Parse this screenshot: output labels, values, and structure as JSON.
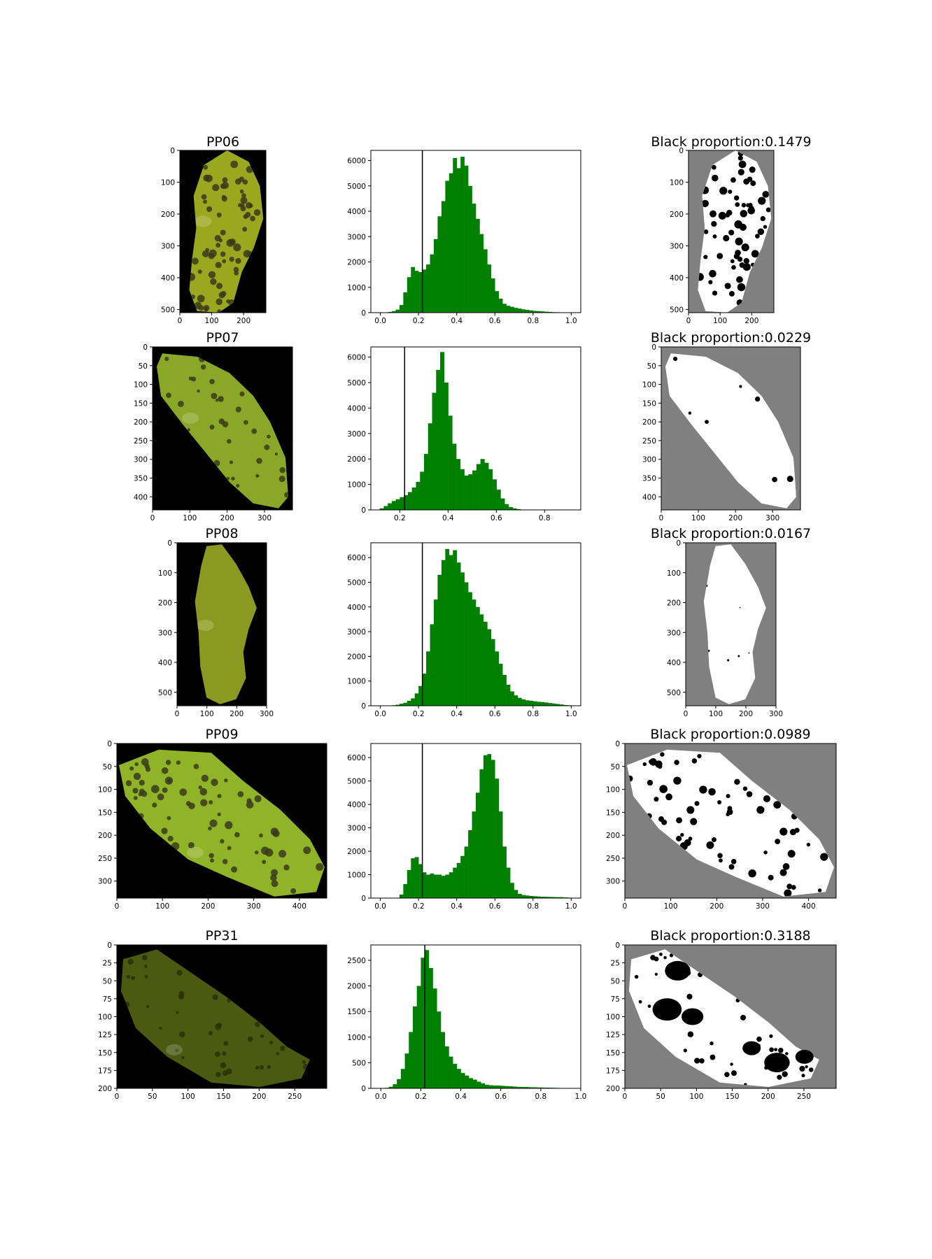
{
  "chart_data": [
    {
      "id": "PP06",
      "image_title": "PP06",
      "image": {
        "type": "image",
        "xlim": [
          0,
          270
        ],
        "ylim": [
          510,
          0
        ],
        "xticks": [
          0,
          100,
          200
        ],
        "yticks": [
          0,
          100,
          200,
          300,
          400,
          500
        ],
        "spots": "dense-large",
        "tint": "#9aa820"
      },
      "histogram": {
        "type": "bar",
        "color": "#008000",
        "xlim": [
          -0.05,
          1.05
        ],
        "ylim": [
          0,
          6400
        ],
        "xticks": [
          0.0,
          0.2,
          0.4,
          0.6,
          0.8,
          1.0
        ],
        "yticks": [
          0,
          1000,
          2000,
          3000,
          4000,
          5000,
          6000
        ],
        "bin_start": 0.0,
        "bin_width": 0.02,
        "values": [
          0,
          10,
          30,
          60,
          120,
          300,
          800,
          1400,
          1800,
          1650,
          1600,
          1700,
          1900,
          2300,
          2900,
          3800,
          4400,
          5200,
          5500,
          6100,
          5700,
          6150,
          5800,
          5000,
          4300,
          3700,
          3100,
          2500,
          1900,
          1350,
          850,
          550,
          350,
          270,
          230,
          190,
          160,
          130,
          110,
          90,
          70,
          60,
          50,
          40,
          30,
          20,
          15,
          10,
          6,
          4,
          2,
          0
        ],
        "threshold": 0.22
      },
      "mask": {
        "type": "image",
        "title": "Black proportion:0.1479",
        "xlim": [
          0,
          270
        ],
        "ylim": [
          510,
          0
        ],
        "xticks": [
          0,
          100,
          200
        ],
        "yticks": [
          0,
          100,
          200,
          300,
          400,
          500
        ]
      }
    },
    {
      "id": "PP07",
      "image_title": "PP07",
      "image": {
        "type": "image",
        "xlim": [
          0,
          375
        ],
        "ylim": [
          435,
          0
        ],
        "xticks": [
          0,
          100,
          200,
          300
        ],
        "yticks": [
          0,
          50,
          100,
          150,
          200,
          250,
          300,
          350,
          400
        ],
        "spots": "sparse-medium",
        "tint": "#8aa828"
      },
      "histogram": {
        "type": "bar",
        "color": "#008000",
        "xlim": [
          0.08,
          0.95
        ],
        "ylim": [
          0,
          6400
        ],
        "xticks": [
          0.2,
          0.4,
          0.6,
          0.8
        ],
        "yticks": [
          0,
          1000,
          2000,
          3000,
          4000,
          5000,
          6000
        ],
        "bin_start": 0.1,
        "bin_width": 0.0167,
        "values": [
          0,
          60,
          150,
          260,
          350,
          420,
          500,
          580,
          700,
          880,
          1100,
          1500,
          2200,
          3400,
          4600,
          5500,
          6200,
          5000,
          3700,
          2600,
          2000,
          1600,
          1350,
          1400,
          1550,
          1800,
          2000,
          1850,
          1600,
          1200,
          800,
          450,
          230,
          110,
          60,
          30,
          10,
          0
        ],
        "threshold": 0.22
      },
      "mask": {
        "type": "image",
        "title": "Black proportion:0.0229",
        "xlim": [
          0,
          375
        ],
        "ylim": [
          435,
          0
        ],
        "xticks": [
          0,
          100,
          200,
          300
        ],
        "yticks": [
          0,
          50,
          100,
          150,
          200,
          250,
          300,
          350,
          400
        ]
      }
    },
    {
      "id": "PP08",
      "image_title": "PP08",
      "image": {
        "type": "image",
        "xlim": [
          0,
          300
        ],
        "ylim": [
          545,
          0
        ],
        "xticks": [
          0,
          100,
          200,
          300
        ],
        "yticks": [
          0,
          100,
          200,
          300,
          400,
          500
        ],
        "spots": "none",
        "tint": "#8a9a20"
      },
      "histogram": {
        "type": "bar",
        "color": "#008000",
        "xlim": [
          -0.05,
          1.05
        ],
        "ylim": [
          0,
          6600
        ],
        "xticks": [
          0.0,
          0.2,
          0.4,
          0.6,
          0.8,
          1.0
        ],
        "yticks": [
          0,
          1000,
          2000,
          3000,
          4000,
          5000,
          6000
        ],
        "bin_start": 0.0,
        "bin_width": 0.02,
        "values": [
          0,
          0,
          10,
          20,
          40,
          80,
          120,
          200,
          300,
          500,
          800,
          1300,
          2200,
          3300,
          4300,
          5300,
          5900,
          6350,
          6100,
          6300,
          5800,
          5400,
          5000,
          4600,
          4300,
          4000,
          3700,
          3400,
          3100,
          2700,
          2200,
          1700,
          1250,
          850,
          580,
          420,
          320,
          260,
          220,
          200,
          180,
          160,
          150,
          130,
          110,
          90,
          70,
          50,
          30,
          20,
          10,
          0
        ],
        "threshold": 0.22
      },
      "mask": {
        "type": "image",
        "title": "Black proportion:0.0167",
        "xlim": [
          0,
          300
        ],
        "ylim": [
          545,
          0
        ],
        "xticks": [
          0,
          100,
          200,
          300
        ],
        "yticks": [
          0,
          100,
          200,
          300,
          400,
          500
        ]
      }
    },
    {
      "id": "PP09",
      "image_title": "PP09",
      "image": {
        "type": "image",
        "xlim": [
          0,
          460
        ],
        "ylim": [
          337,
          0
        ],
        "xticks": [
          0,
          100,
          200,
          300,
          400
        ],
        "yticks": [
          0,
          50,
          100,
          150,
          200,
          250,
          300
        ],
        "spots": "dense-large",
        "tint": "#90b428"
      },
      "histogram": {
        "type": "bar",
        "color": "#008000",
        "xlim": [
          -0.05,
          1.05
        ],
        "ylim": [
          0,
          6600
        ],
        "xticks": [
          0.0,
          0.2,
          0.4,
          0.6,
          0.8,
          1.0
        ],
        "yticks": [
          0,
          1000,
          2000,
          3000,
          4000,
          5000,
          6000
        ],
        "bin_start": 0.0,
        "bin_width": 0.02,
        "values": [
          0,
          0,
          0,
          0,
          0,
          150,
          600,
          1200,
          1700,
          1750,
          1450,
          1100,
          1000,
          1050,
          1000,
          1000,
          950,
          1000,
          1100,
          1300,
          1500,
          1800,
          2200,
          2900,
          3700,
          4500,
          5500,
          6100,
          6150,
          5900,
          5100,
          3700,
          2200,
          1300,
          650,
          350,
          180,
          130,
          110,
          90,
          80,
          70,
          60,
          55,
          50,
          45,
          40,
          40,
          30,
          20,
          0,
          0
        ],
        "threshold": 0.22
      },
      "mask": {
        "type": "image",
        "title": "Black proportion:0.0989",
        "xlim": [
          0,
          460
        ],
        "ylim": [
          337,
          0
        ],
        "xticks": [
          0,
          100,
          200,
          300,
          400
        ],
        "yticks": [
          0,
          50,
          100,
          150,
          200,
          250,
          300
        ]
      }
    },
    {
      "id": "PP31",
      "image_title": "PP31",
      "image": {
        "type": "image",
        "xlim": [
          0,
          295
        ],
        "ylim": [
          200,
          0
        ],
        "xticks": [
          0,
          50,
          100,
          150,
          200,
          250
        ],
        "yticks": [
          0,
          25,
          50,
          75,
          100,
          125,
          150,
          175,
          200
        ],
        "spots": "dark-medium",
        "tint": "#4a5a10"
      },
      "histogram": {
        "type": "bar",
        "color": "#008000",
        "xlim": [
          -0.05,
          1.0
        ],
        "ylim": [
          0,
          2800
        ],
        "xticks": [
          0.0,
          0.2,
          0.4,
          0.6,
          0.8,
          1.0
        ],
        "yticks": [
          0,
          500,
          1000,
          1500,
          2000,
          2500
        ],
        "bin_start": 0.0,
        "bin_width": 0.02,
        "values": [
          0,
          10,
          30,
          80,
          180,
          380,
          680,
          1100,
          1600,
          2000,
          2550,
          2700,
          2350,
          1950,
          1500,
          1100,
          820,
          620,
          480,
          380,
          300,
          250,
          200,
          170,
          130,
          100,
          70,
          60,
          55,
          55,
          50,
          45,
          40,
          35,
          30,
          28,
          25,
          22,
          20,
          18,
          16,
          14,
          12,
          10,
          8,
          6,
          5,
          4,
          2,
          0
        ],
        "threshold": 0.22
      },
      "mask": {
        "type": "image",
        "title": "Black proportion:0.3188",
        "xlim": [
          0,
          295
        ],
        "ylim": [
          200,
          0
        ],
        "xticks": [
          0,
          50,
          100,
          150,
          200,
          250
        ],
        "yticks": [
          0,
          25,
          50,
          75,
          100,
          125,
          150,
          175,
          200
        ]
      }
    }
  ]
}
